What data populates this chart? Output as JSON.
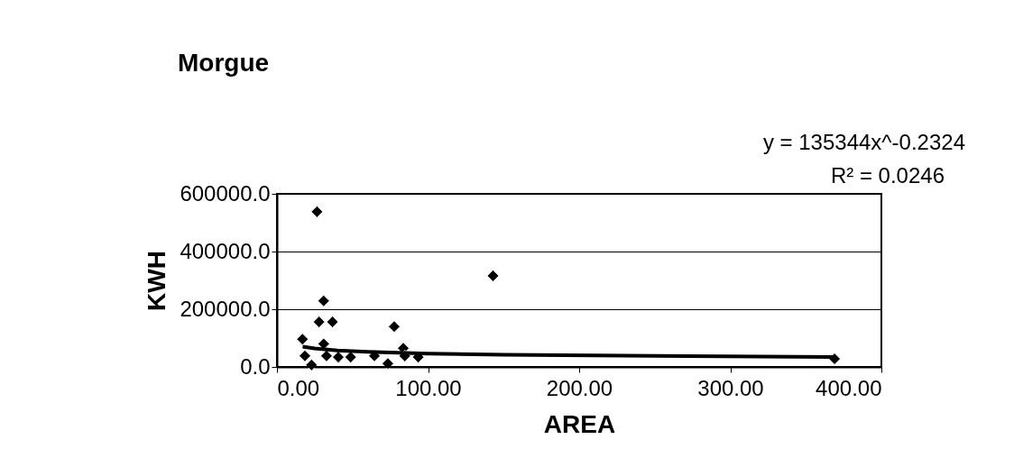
{
  "chart_data": {
    "type": "scatter",
    "title": "Morgue",
    "xlabel": "AREA",
    "ylabel": "KWH",
    "annotations": [
      "y = 135344x^-0.2324",
      "R² = 0.0246"
    ],
    "xlim": [
      0,
      400
    ],
    "ylim": [
      0,
      600000
    ],
    "xticks": [
      {
        "value": 0,
        "label": "0.00"
      },
      {
        "value": 100,
        "label": "100.00"
      },
      {
        "value": 200,
        "label": "200.00"
      },
      {
        "value": 300,
        "label": "300.00"
      },
      {
        "value": 400,
        "label": "400.00"
      }
    ],
    "yticks": [
      {
        "value": 0,
        "label": "0.0"
      },
      {
        "value": 200000,
        "label": "200000.0"
      },
      {
        "value": 400000,
        "label": "400000.0"
      },
      {
        "value": 600000,
        "label": "600000.0"
      }
    ],
    "grid": "y",
    "marker": "diamond",
    "series": [
      {
        "color": "#000000",
        "x": [
          26.5,
          30.9,
          27.9,
          36.8,
          77.6,
          143,
          16.9,
          30.9,
          18.5,
          22.9,
          32.8,
          40.6,
          48.8,
          64.5,
          73.4,
          83.6,
          84.6,
          93.5,
          369
        ],
        "values": [
          538000,
          229000,
          156000,
          156000,
          140000,
          316000,
          96000,
          80000,
          38000,
          7000,
          38000,
          34000,
          34000,
          38000,
          12000,
          65000,
          38000,
          34000,
          28000
        ]
      },
      {
        "type": "line",
        "marker": "none",
        "color": "#000000",
        "x": [
          17,
          25,
          40,
          60,
          100,
          150,
          250,
          369
        ],
        "values": [
          70000,
          64000,
          57000,
          52000,
          46000,
          42000,
          38000,
          34000
        ]
      }
    ]
  }
}
